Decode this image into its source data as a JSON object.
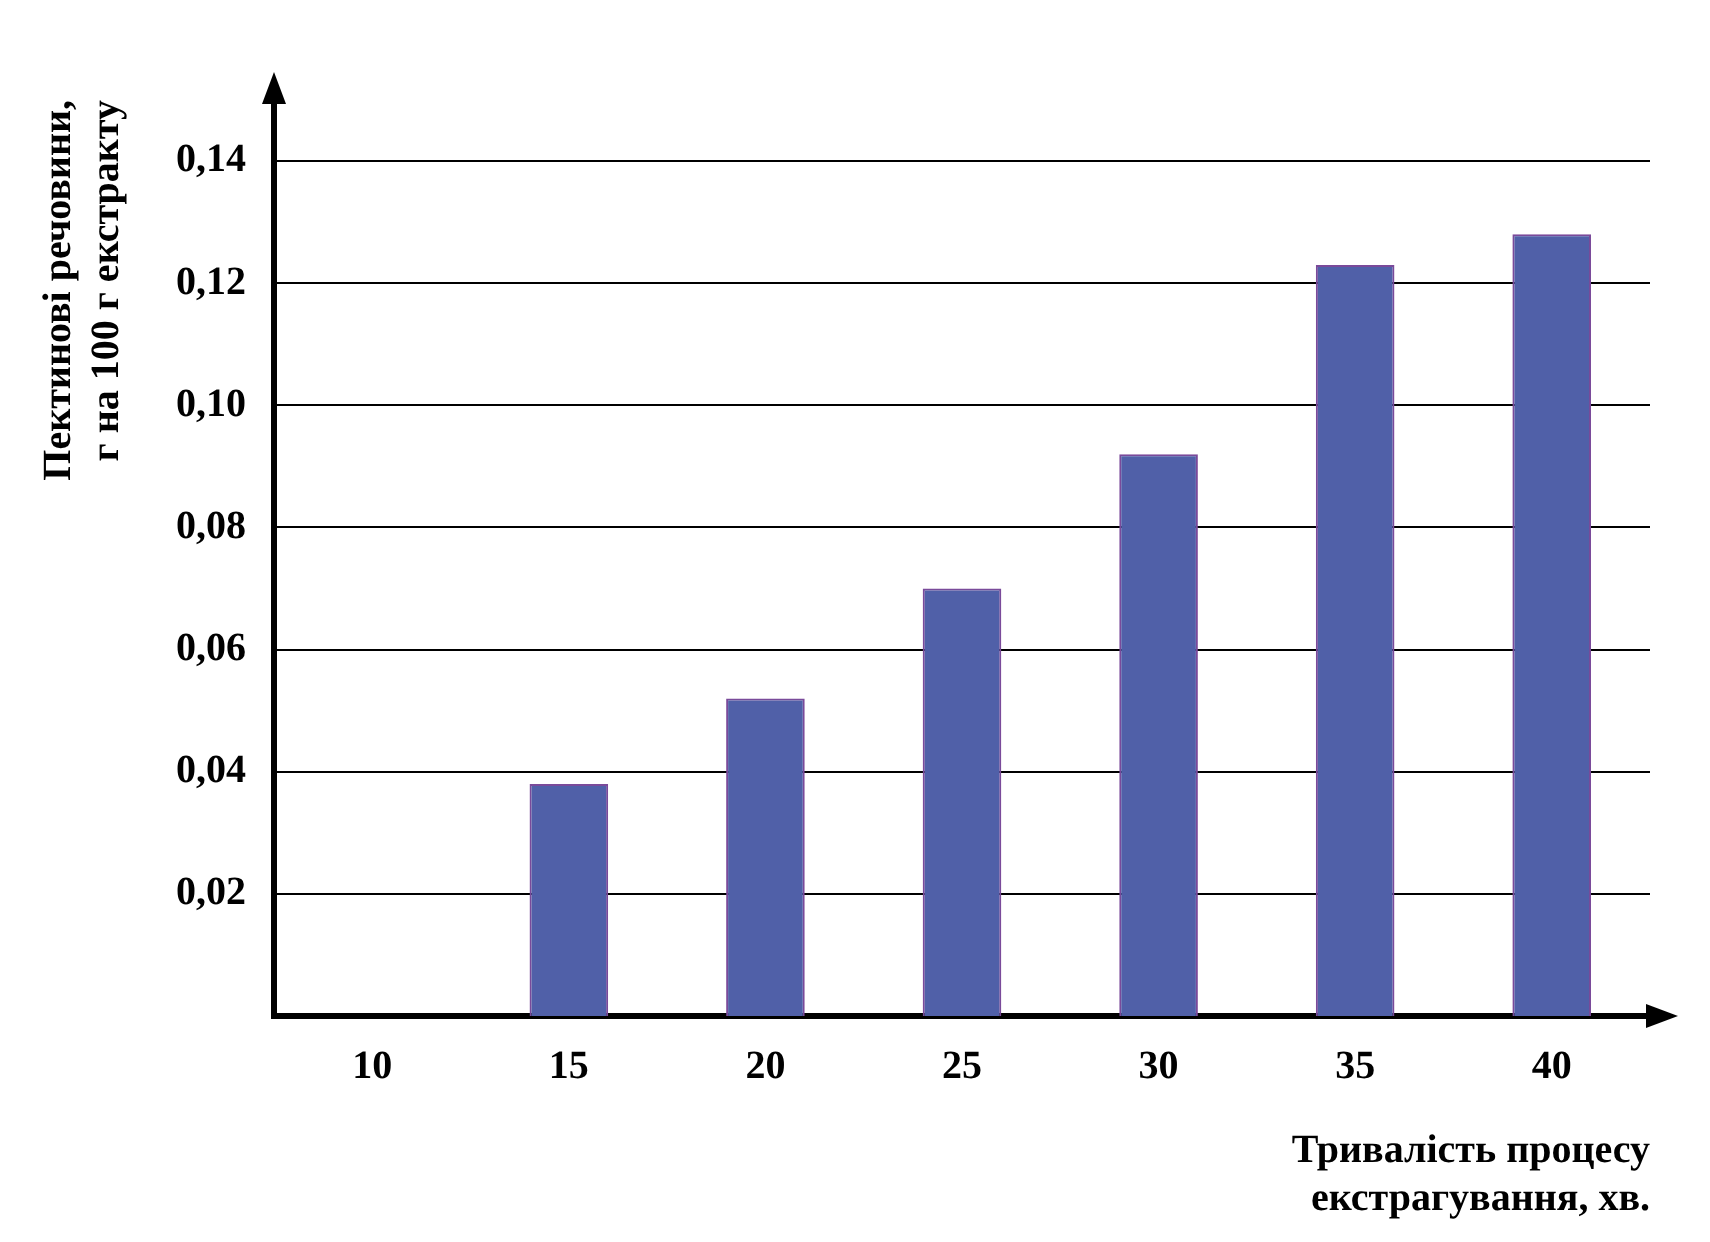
{
  "chart_data": {
    "type": "bar",
    "xlabel": "Тривалість процесу\nекстрагування, хв.",
    "ylabel": "Пектинові речовини,\nг на 100 г екстракту",
    "categories": [
      "10",
      "15",
      "20",
      "25",
      "30",
      "35",
      "40"
    ],
    "values": [
      0,
      0.038,
      0.052,
      0.07,
      0.092,
      0.123,
      0.128
    ],
    "color": "#5060a8",
    "ylim": [
      0,
      0.15
    ],
    "yticks": [
      {
        "value": 0.02,
        "label": "0,02"
      },
      {
        "value": 0.04,
        "label": "0,04"
      },
      {
        "value": 0.06,
        "label": "0,06"
      },
      {
        "value": 0.08,
        "label": "0,08"
      },
      {
        "value": 0.1,
        "label": "0,10"
      },
      {
        "value": 0.12,
        "label": "0,12"
      },
      {
        "value": 0.14,
        "label": "0,14"
      }
    ],
    "grid": "y",
    "legend": false
  }
}
